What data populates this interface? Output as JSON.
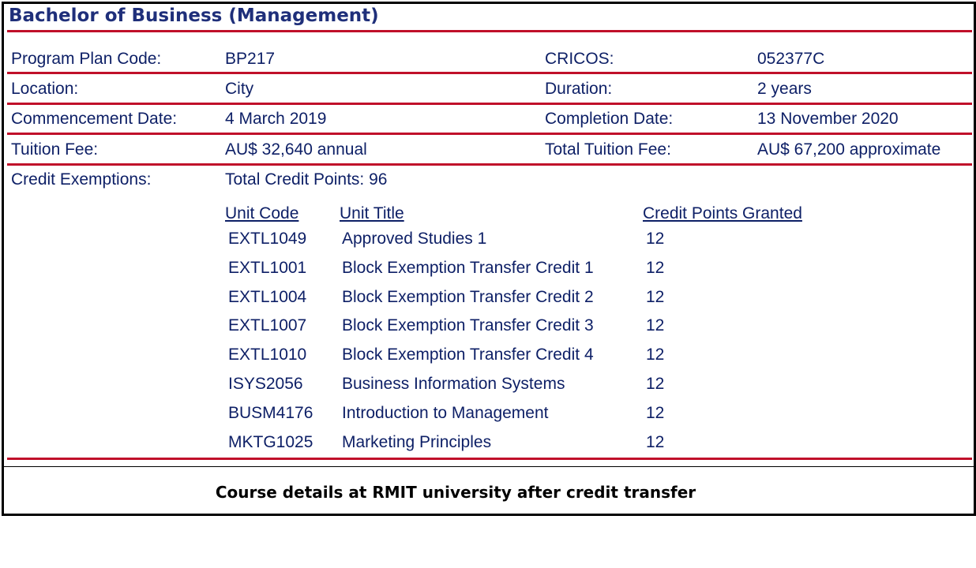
{
  "doc": {
    "title": "Bachelor of Business (Management)",
    "fields": [
      {
        "label": "Program Plan Code:",
        "value": "BP217",
        "label2": "CRICOS:",
        "value2": "052377C"
      },
      {
        "label": "Location:",
        "value": "City",
        "label2": "Duration:",
        "value2": "2 years"
      },
      {
        "label": "Commencement Date:",
        "value": "4 March 2019",
        "label2": "Completion Date:",
        "value2": "13 November 2020"
      },
      {
        "label": "Tuition Fee:",
        "value": "AU$ 32,640 annual",
        "label2": "Total Tuition Fee:",
        "value2": "AU$ 67,200 approximate"
      }
    ],
    "credit": {
      "label": "Credit Exemptions:",
      "total": "Total Credit Points: 96",
      "headers": {
        "code": "Unit Code",
        "title": "Unit Title",
        "points": "Credit Points Granted"
      },
      "units": [
        {
          "code": "EXTL1049",
          "title": "Approved Studies 1",
          "points": "12"
        },
        {
          "code": "EXTL1001",
          "title": "Block Exemption Transfer Credit 1",
          "points": "12"
        },
        {
          "code": "EXTL1004",
          "title": "Block Exemption Transfer Credit 2",
          "points": "12"
        },
        {
          "code": "EXTL1007",
          "title": "Block Exemption Transfer Credit 3",
          "points": "12"
        },
        {
          "code": "EXTL1010",
          "title": "Block Exemption Transfer Credit 4",
          "points": "12"
        },
        {
          "code": "ISYS2056",
          "title": "Business Information Systems",
          "points": "12"
        },
        {
          "code": "BUSM4176",
          "title": "Introduction to Management",
          "points": "12"
        },
        {
          "code": "MKTG1025",
          "title": "Marketing Principles",
          "points": "12"
        }
      ]
    }
  },
  "caption": "Course details at RMIT university after credit transfer",
  "colors": {
    "title": "#1f2f7a",
    "text": "#0d1f66",
    "rule": "#c0102a"
  }
}
